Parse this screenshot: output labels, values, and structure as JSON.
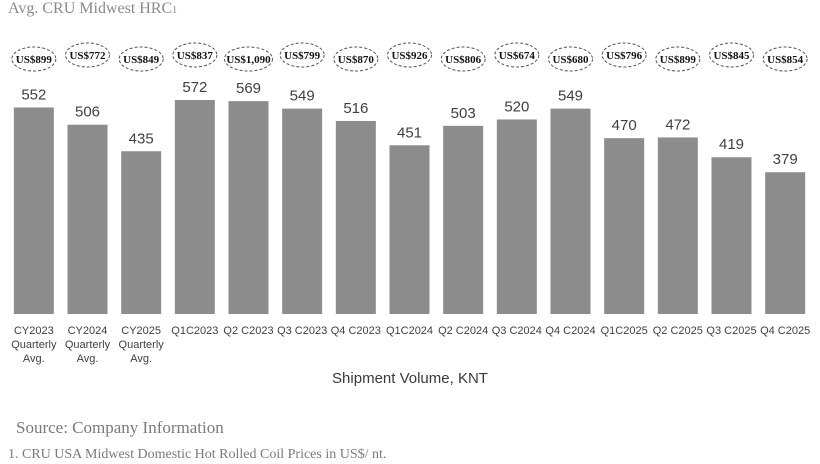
{
  "header": {
    "title": "Avg. CRU Midwest HRC",
    "title_superscript": "1"
  },
  "chart_data": {
    "type": "bar",
    "title": "Avg. CRU Midwest HRC1",
    "xlabel": "Shipment Volume, KNT",
    "ylabel": "",
    "ylim": [
      0,
      580
    ],
    "grid": false,
    "categories": [
      [
        "CY2023",
        "Quarterly",
        "Avg."
      ],
      [
        "CY2024",
        "Quarterly",
        "Avg."
      ],
      [
        "CY2025",
        "Quarterly",
        "Avg."
      ],
      [
        "Q1C2023"
      ],
      [
        "Q2 C2023"
      ],
      [
        "Q3 C2023"
      ],
      [
        "Q4 C2023"
      ],
      [
        "Q1C2024"
      ],
      [
        "Q2 C2024"
      ],
      [
        "Q3 C2024"
      ],
      [
        "Q4 C2024"
      ],
      [
        "Q1C2025"
      ],
      [
        "Q2 C2025"
      ],
      [
        "Q3 C2025"
      ],
      [
        "Q4 C2025"
      ]
    ],
    "values": [
      552,
      506,
      435,
      572,
      569,
      549,
      516,
      451,
      503,
      520,
      549,
      470,
      472,
      419,
      379
    ],
    "price_annotations": [
      "US$899",
      "US$772",
      "US$849",
      "US$837",
      "US$1,090",
      "US$799",
      "US$870",
      "US$926",
      "US$806",
      "US$674",
      "US$680",
      "US$796",
      "US$899",
      "US$845",
      "US$854"
    ],
    "colors": {
      "bar": "#8c8c8c",
      "value_label": "#404040",
      "tick_label": "#404040",
      "oval_border": "#555555"
    }
  },
  "footer": {
    "source": "Source: Company Information",
    "footnote": "1. CRU USA Midwest Domestic Hot Rolled Coil Prices in US$/ nt."
  }
}
